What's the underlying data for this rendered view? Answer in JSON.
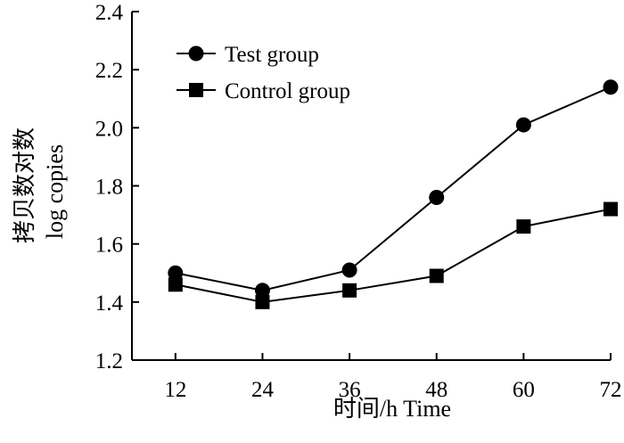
{
  "chart_data": {
    "type": "line",
    "x": [
      12,
      24,
      36,
      48,
      60,
      72
    ],
    "x_tick_labels": [
      "12",
      "24",
      "36",
      "48",
      "60",
      "72"
    ],
    "y_tick_labels": [
      "1.2",
      "1.4",
      "1.6",
      "1.8",
      "2.0",
      "2.2",
      "2.4"
    ],
    "ylim": [
      1.2,
      2.4
    ],
    "y_ticks": [
      1.2,
      1.4,
      1.6,
      1.8,
      2.0,
      2.2,
      2.4
    ],
    "xlabel": "时间/h Time",
    "ylabel_line1": "拷贝数对数",
    "ylabel_line2": "log copies",
    "legend_position": "top-left",
    "grid": false,
    "series": [
      {
        "name": "Test group",
        "marker": "circle",
        "values": [
          1.5,
          1.44,
          1.51,
          1.76,
          2.01,
          2.14
        ]
      },
      {
        "name": "Control group",
        "marker": "square",
        "values": [
          1.46,
          1.4,
          1.44,
          1.49,
          1.66,
          1.72
        ]
      }
    ],
    "colors": {
      "line": "#000000",
      "marker": "#000000",
      "axis": "#000000"
    }
  }
}
